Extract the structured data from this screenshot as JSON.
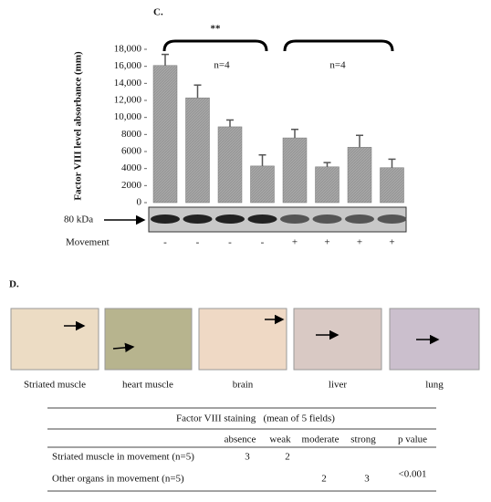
{
  "chart_data": {
    "type": "bar",
    "panel_label": "C.",
    "ylabel": "Factor VIII level absorbance (mm)",
    "x_label": "Movement",
    "categories": [
      "-",
      "-",
      "-",
      "-",
      "+",
      "+",
      "+",
      "+"
    ],
    "values": [
      16100,
      12300,
      8900,
      4300,
      7600,
      4200,
      6500,
      4100
    ],
    "errors": [
      1300,
      1500,
      800,
      1300,
      1000,
      500,
      1400,
      1000
    ],
    "color": "#a6a6a6",
    "ylim": [
      0,
      18000
    ],
    "yticks": [
      0,
      2000,
      4000,
      6000,
      8000,
      {
        "value": 10000,
        "label": "10,000"
      },
      {
        "value": 12000,
        "label": "12,000"
      },
      {
        "value": 14000,
        "label": "14,000"
      },
      {
        "value": 16000,
        "label": "16,000"
      },
      {
        "value": 18000,
        "label": "18,000"
      }
    ],
    "annotations": [
      "**",
      "n=4",
      "n=4"
    ],
    "blot_label": "80 kDa"
  },
  "panel_d": {
    "label": "D.",
    "images": [
      "Striated muscle",
      "heart muscle",
      "brain",
      "liver",
      "lung"
    ],
    "table": {
      "title": "Factor VIII staining   (mean of 5 fields)",
      "headers": [
        "absence",
        "weak",
        "moderate",
        "strong",
        "p value"
      ],
      "rows": [
        {
          "label": "Striated muscle in movement (n=5)",
          "cells": [
            3,
            2,
            null,
            null
          ]
        },
        {
          "label": "Other organs in movement (n=5)",
          "cells": [
            null,
            null,
            2,
            3
          ]
        }
      ],
      "p_value": "<0.001"
    }
  }
}
